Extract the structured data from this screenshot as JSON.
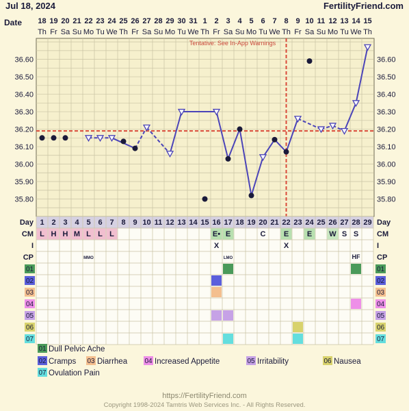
{
  "header": {
    "date_label": "Jul 18, 2024",
    "brand": "FertilityFriend.com",
    "row_label": "Date"
  },
  "tentative_note": "Tentative: See In-App Warnings",
  "dates": [
    "18",
    "19",
    "20",
    "21",
    "22",
    "23",
    "24",
    "25",
    "26",
    "27",
    "28",
    "29",
    "30",
    "31",
    "1",
    "2",
    "3",
    "4",
    "5",
    "6",
    "7",
    "8",
    "9",
    "10",
    "11",
    "12",
    "13",
    "14",
    "15"
  ],
  "weekdays": [
    "Th",
    "Fr",
    "Sa",
    "Su",
    "Mo",
    "Tu",
    "We",
    "Th",
    "Fr",
    "Sa",
    "Su",
    "Mo",
    "Tu",
    "We",
    "Th",
    "Fr",
    "Sa",
    "Su",
    "Mo",
    "Tu",
    "We",
    "Th",
    "Fr",
    "Sa",
    "Su",
    "Mo",
    "Tu",
    "We",
    "Th"
  ],
  "chart_data": {
    "type": "line",
    "ylabel": "",
    "ylim": [
      35.7,
      36.72
    ],
    "y_ticks": [
      "36.60",
      "36.50",
      "36.40",
      "36.30",
      "36.20",
      "36.10",
      "36.00",
      "35.90",
      "35.80"
    ],
    "coverline": 36.19,
    "ovulation_day": 22,
    "cycle_days": [
      1,
      2,
      3,
      4,
      5,
      6,
      7,
      8,
      9,
      10,
      11,
      12,
      13,
      14,
      15,
      16,
      17,
      18,
      19,
      20,
      21,
      22,
      23,
      24,
      25,
      26,
      27,
      28,
      29
    ],
    "temps": [
      36.15,
      36.15,
      36.15,
      null,
      36.15,
      36.15,
      36.15,
      36.13,
      36.09,
      36.21,
      null,
      36.06,
      36.3,
      null,
      35.8,
      36.3,
      36.03,
      36.2,
      35.82,
      36.04,
      36.14,
      36.07,
      36.26,
      36.59,
      36.2,
      36.22,
      36.19,
      36.35,
      36.67
    ],
    "markers": [
      "filled-dot",
      "filled-dot",
      "filled-dot",
      "",
      "open-triangle",
      "open-triangle",
      "open-triangle",
      "filled-dot",
      "filled-dot",
      "open-triangle",
      "",
      "open-triangle",
      "open-triangle",
      "",
      "filled-dot",
      "open-triangle",
      "filled-dot",
      "filled-dot",
      "filled-dot",
      "open-triangle",
      "filled-dot",
      "filled-dot",
      "open-triangle",
      "filled-dot",
      "open-triangle",
      "open-triangle",
      "open-triangle",
      "open-triangle",
      "open-triangle"
    ],
    "segments": [
      {
        "from": 5,
        "to": 7,
        "style": "dashed"
      },
      {
        "from": 7,
        "to": 9,
        "style": "solid"
      },
      {
        "from": 9,
        "to": 10,
        "style": "dashed"
      },
      {
        "from": 10,
        "to": 12,
        "style": "dashed"
      },
      {
        "from": 12,
        "to": 13,
        "style": "solid"
      },
      {
        "from": 13,
        "to": 16,
        "style": "solid"
      },
      {
        "from": 16,
        "to": 17,
        "style": "solid"
      },
      {
        "from": 17,
        "to": 18,
        "style": "solid"
      },
      {
        "from": 18,
        "to": 19,
        "style": "solid"
      },
      {
        "from": 19,
        "to": 20,
        "style": "solid"
      },
      {
        "from": 20,
        "to": 21,
        "style": "solid"
      },
      {
        "from": 21,
        "to": 22,
        "style": "solid"
      },
      {
        "from": 22,
        "to": 23,
        "style": "solid"
      },
      {
        "from": 23,
        "to": 25,
        "style": "dashed"
      },
      {
        "from": 25,
        "to": 26,
        "style": "dashed"
      },
      {
        "from": 26,
        "to": 27,
        "style": "dashed"
      },
      {
        "from": 27,
        "to": 28,
        "style": "solid"
      },
      {
        "from": 28,
        "to": 29,
        "style": "solid"
      }
    ],
    "day_label": "Day",
    "cm_label": "CM",
    "i_label": "I",
    "cp_label": "CP",
    "cm": {
      "1": "L",
      "2": "H",
      "3": "H",
      "4": "M",
      "5": "L",
      "6": "L",
      "7": "L",
      "16": "E•",
      "17": "E",
      "20": "C",
      "22": "E",
      "24": "E",
      "26": "W",
      "27": "S",
      "28": "S"
    },
    "intercourse": {
      "16": "X",
      "22": "X"
    },
    "cp_notes": {
      "5": "MMO",
      "17": "LMO",
      "28": "HF"
    },
    "symptoms": [
      {
        "code": "01",
        "name": "Dull Pelvic Ache",
        "color": "#4a9a5a",
        "days": [
          17,
          28
        ]
      },
      {
        "code": "02",
        "name": "Cramps",
        "color": "#5b5fdc",
        "days": [
          16
        ]
      },
      {
        "code": "03",
        "name": "Diarrhea",
        "color": "#f4bf8f",
        "days": [
          16
        ]
      },
      {
        "code": "04",
        "name": "Increased Appetite",
        "color": "#ee8fe8",
        "days": [
          28
        ]
      },
      {
        "code": "05",
        "name": "Irritability",
        "color": "#c6a2e6",
        "days": [
          16,
          17
        ]
      },
      {
        "code": "06",
        "name": "Nausea",
        "color": "#d8d26c",
        "days": [
          23
        ]
      },
      {
        "code": "07",
        "name": "Ovulation Pain",
        "color": "#64dede",
        "days": [
          17,
          23
        ]
      }
    ]
  },
  "footer": {
    "url": "https://FertilityFriend.com",
    "copyright": "Copyright 1998-2024 Tamtris Web Services Inc. - All Rights Reserved."
  }
}
